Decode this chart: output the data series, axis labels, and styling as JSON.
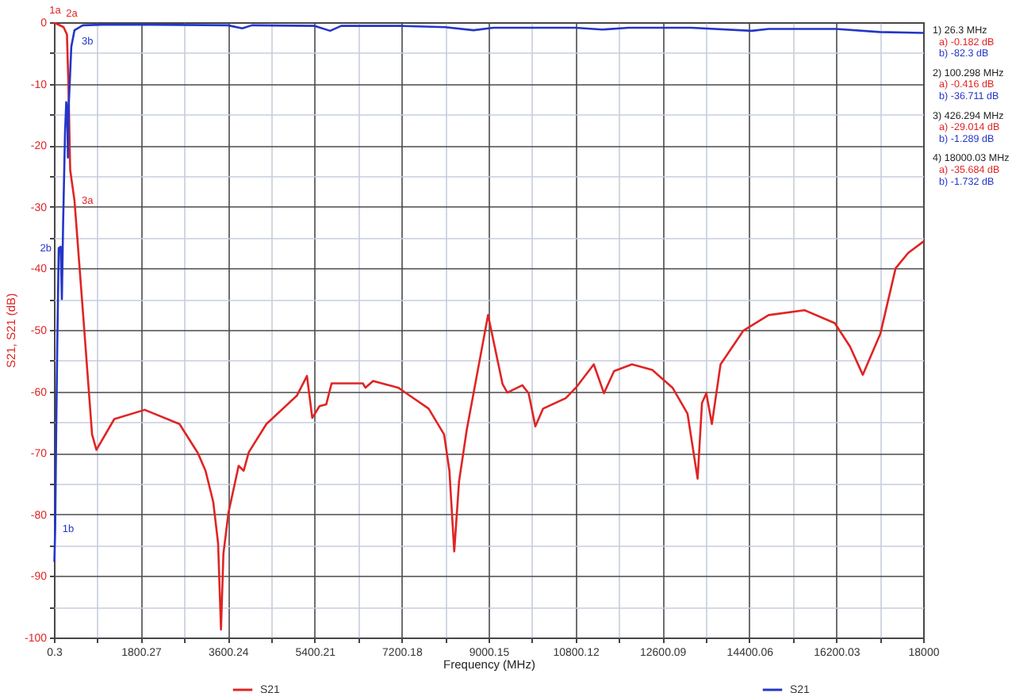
{
  "chart_data": {
    "type": "line",
    "xlabel": "Frequency (MHz)",
    "ylabel": "S21, S21 (dB)",
    "xlim": [
      0.3,
      18000.03
    ],
    "ylim": [
      -100,
      0
    ],
    "xticks": [
      0.3,
      {
        "value": 900.285,
        "label": null
      },
      1800.27,
      {
        "value": 2700.255,
        "label": null
      },
      3600.24,
      {
        "value": 4500.225,
        "label": null
      },
      5400.21,
      {
        "value": 6300.195,
        "label": null
      },
      7200.18,
      {
        "value": 8100.165,
        "label": null
      },
      9000.15,
      {
        "value": 9900.135,
        "label": null
      },
      10800.12,
      {
        "value": 11700.105,
        "label": null
      },
      12600.09,
      {
        "value": 13500.075,
        "label": null
      },
      14400.06,
      {
        "value": 15300.045,
        "label": null
      },
      16200.03,
      {
        "value": 17100.015,
        "label": null
      },
      18000
    ],
    "yticks": [
      -100,
      {
        "value": -95,
        "label": null
      },
      -90,
      {
        "value": -85,
        "label": null
      },
      -80,
      {
        "value": -75,
        "label": null
      },
      -70,
      {
        "value": -65,
        "label": null
      },
      -60,
      {
        "value": -55,
        "label": null
      },
      -50,
      {
        "value": -45,
        "label": null
      },
      -40,
      {
        "value": -35,
        "label": null
      },
      -30,
      {
        "value": -25,
        "label": null
      },
      -20,
      {
        "value": -15,
        "label": null
      },
      -10,
      {
        "value": -5,
        "label": null
      },
      0
    ],
    "grid": true,
    "legend": "bottom",
    "series": [
      {
        "name": "S21",
        "color": "#e02424",
        "x": [
          10,
          26.3,
          100.298,
          200,
          270,
          300,
          337,
          426.294,
          600,
          790,
          880,
          1250,
          1880,
          2600,
          2980,
          3140,
          3300,
          3400,
          3460,
          3510,
          3615,
          3825,
          3930,
          4035,
          4400,
          5030,
          5240,
          5350,
          5500,
          5640,
          5750,
          6400,
          6450,
          6610,
          7130,
          7760,
          8080,
          8190,
          8290,
          8390,
          8550,
          8990,
          9290,
          9390,
          9700,
          9830,
          9970,
          10130,
          10600,
          10810,
          11180,
          11390,
          11600,
          11970,
          12390,
          12810,
          13120,
          13330,
          13420,
          13510,
          13625,
          13805,
          14280,
          14800,
          15540,
          16170,
          16485,
          16750,
          17115,
          17430,
          17690,
          18000.03
        ],
        "values": [
          -0.2,
          -0.182,
          -0.416,
          -0.8,
          -2,
          -10,
          -24,
          -29.014,
          -47,
          -67,
          -69.5,
          -64.5,
          -63,
          -65.3,
          -70,
          -72.9,
          -78,
          -84.7,
          -98.7,
          -86.4,
          -79.7,
          -72.1,
          -72.9,
          -69.9,
          -65.3,
          -60.7,
          -57.5,
          -64.3,
          -62.4,
          -62.1,
          -58.7,
          -58.7,
          -59.4,
          -58.3,
          -59.4,
          -62.8,
          -67,
          -72.9,
          -86,
          -74.6,
          -66.2,
          -47.6,
          -58.8,
          -60.2,
          -59,
          -60.3,
          -65.7,
          -62.8,
          -61.1,
          -59.4,
          -55.6,
          -60.3,
          -56.7,
          -55.6,
          -56.5,
          -59.4,
          -63.6,
          -74.2,
          -61.9,
          -60.3,
          -65.3,
          -55.6,
          -50.1,
          -47.6,
          -46.8,
          -48.9,
          -52.7,
          -57.3,
          -50.6,
          -40,
          -37.5,
          -35.684
        ]
      },
      {
        "name": "S21",
        "color": "#2436c8",
        "x": [
          10,
          26.3,
          45,
          70,
          100.298,
          140,
          165,
          190,
          230,
          255,
          275,
          290,
          310,
          360,
          426.294,
          600,
          1000,
          2000,
          3600,
          3900,
          4100,
          5400,
          5720,
          5950,
          7200,
          8100,
          8690,
          9100,
          10800,
          11350,
          11900,
          13200,
          14450,
          14800,
          16200,
          17100,
          18000.03
        ],
        "values": [
          -87.6,
          -82.3,
          -68,
          -52,
          -36.711,
          -36.5,
          -45,
          -33,
          -18,
          -13,
          -14,
          -22,
          -13,
          -4,
          -1.289,
          -0.5,
          -0.4,
          -0.4,
          -0.5,
          -1,
          -0.5,
          -0.6,
          -1.4,
          -0.6,
          -0.6,
          -0.8,
          -1.3,
          -0.9,
          -0.9,
          -1.2,
          -0.9,
          -0.9,
          -1.4,
          -1.1,
          -1.1,
          -1.6,
          -1.732
        ]
      }
    ],
    "annotations": [
      {
        "text": "1a",
        "x": 26.3,
        "y": -0.182
      },
      {
        "text": "2a",
        "x": 100.298,
        "y": -0.416
      },
      {
        "text": "3a",
        "x": 426.294,
        "y": -29.014
      },
      {
        "text": "1b",
        "x": 26.3,
        "y": -82.3
      },
      {
        "text": "2b",
        "x": 100.298,
        "y": -36.711
      },
      {
        "text": "3b",
        "x": 426.294,
        "y": -1.289
      },
      "1) 26.3 MHz",
      "a) -0.182 dB",
      "b) -82.3 dB",
      "2) 100.298 MHz",
      "a) -0.416 dB",
      "b) -36.711 dB",
      "3) 426.294 MHz",
      "a) -29.014 dB",
      "b) -1.289 dB",
      "4) 18000.03 MHz",
      "a) -35.684 dB",
      "b) -1.732 dB"
    ]
  }
}
